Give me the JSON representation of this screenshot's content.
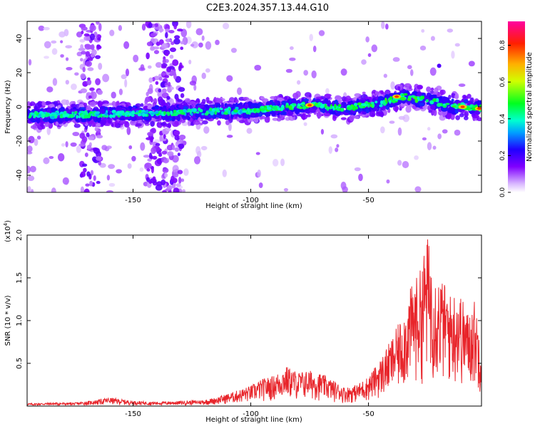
{
  "page": {
    "title": "C2E3.2024.357.13.44.G10"
  },
  "chart_data": [
    {
      "type": "heatmap",
      "title": "C2E3.2024.357.13.44.G10",
      "xlabel": "Height of straight line (km)",
      "ylabel": "Frequency (Hz)",
      "xlim": [
        -195,
        -2
      ],
      "ylim": [
        -50,
        50
      ],
      "xticks": [
        -150,
        -100,
        -50
      ],
      "yticks": [
        -40,
        -20,
        0,
        20,
        40
      ],
      "colorbar": {
        "label": "Normalized spectral amplitude",
        "range": [
          0,
          0.93
        ],
        "ticks": [
          "0.0",
          "0.2",
          "0.4",
          "0.6",
          "0.8"
        ],
        "colormap": "rainbow"
      },
      "ridge": {
        "description_points": [
          [
            -195,
            -5
          ],
          [
            -150,
            -4
          ],
          [
            -100,
            -2
          ],
          [
            -75,
            1
          ],
          [
            -60,
            -1
          ],
          [
            -45,
            2
          ],
          [
            -35,
            6
          ],
          [
            -25,
            4
          ],
          [
            -15,
            1
          ],
          [
            -2,
            -1
          ]
        ],
        "peak_locations": [
          [
            -75,
            1
          ],
          [
            -38,
            6
          ],
          [
            -10,
            0
          ],
          [
            -3,
            -1
          ]
        ]
      },
      "noise_columns_x": [
        -168,
        -140,
        -133
      ]
    },
    {
      "type": "line",
      "xlabel": "Height of straight line (km)",
      "ylabel": "SNR (10 * v/v)",
      "multiplier_label": "(x10",
      "multiplier_exp": "4",
      "multiplier_close": ")",
      "xlim": [
        -195,
        -2
      ],
      "ylim": [
        0,
        2.0
      ],
      "xticks": [
        -150,
        -100,
        -50
      ],
      "yticks": [
        0.5,
        1.0,
        1.5,
        2.0
      ],
      "ytick_labels": [
        "0.5",
        "1.0",
        "1.5",
        "2.0"
      ],
      "series": [
        {
          "color": "#e8252b",
          "envelope": [
            [
              -195,
              0.03
            ],
            [
              -185,
              0.04
            ],
            [
              -175,
              0.04
            ],
            [
              -168,
              0.06
            ],
            [
              -160,
              0.1
            ],
            [
              -150,
              0.06
            ],
            [
              -140,
              0.05
            ],
            [
              -130,
              0.06
            ],
            [
              -120,
              0.07
            ],
            [
              -115,
              0.1
            ],
            [
              -108,
              0.16
            ],
            [
              -100,
              0.24
            ],
            [
              -95,
              0.32
            ],
            [
              -90,
              0.36
            ],
            [
              -85,
              0.47
            ],
            [
              -80,
              0.4
            ],
            [
              -75,
              0.42
            ],
            [
              -70,
              0.38
            ],
            [
              -65,
              0.3
            ],
            [
              -60,
              0.22
            ],
            [
              -55,
              0.25
            ],
            [
              -50,
              0.35
            ],
            [
              -45,
              0.55
            ],
            [
              -40,
              0.8
            ],
            [
              -35,
              1.1
            ],
            [
              -32,
              1.4
            ],
            [
              -28,
              1.6
            ],
            [
              -25,
              2.0
            ],
            [
              -22,
              1.6
            ],
            [
              -18,
              1.45
            ],
            [
              -15,
              1.3
            ],
            [
              -12,
              1.4
            ],
            [
              -8,
              1.1
            ],
            [
              -5,
              1.25
            ],
            [
              -2,
              0.8
            ]
          ]
        }
      ]
    }
  ],
  "labels": {
    "x_tick_150": "-150",
    "x_tick_100": "-100",
    "x_tick_50": "-50"
  }
}
